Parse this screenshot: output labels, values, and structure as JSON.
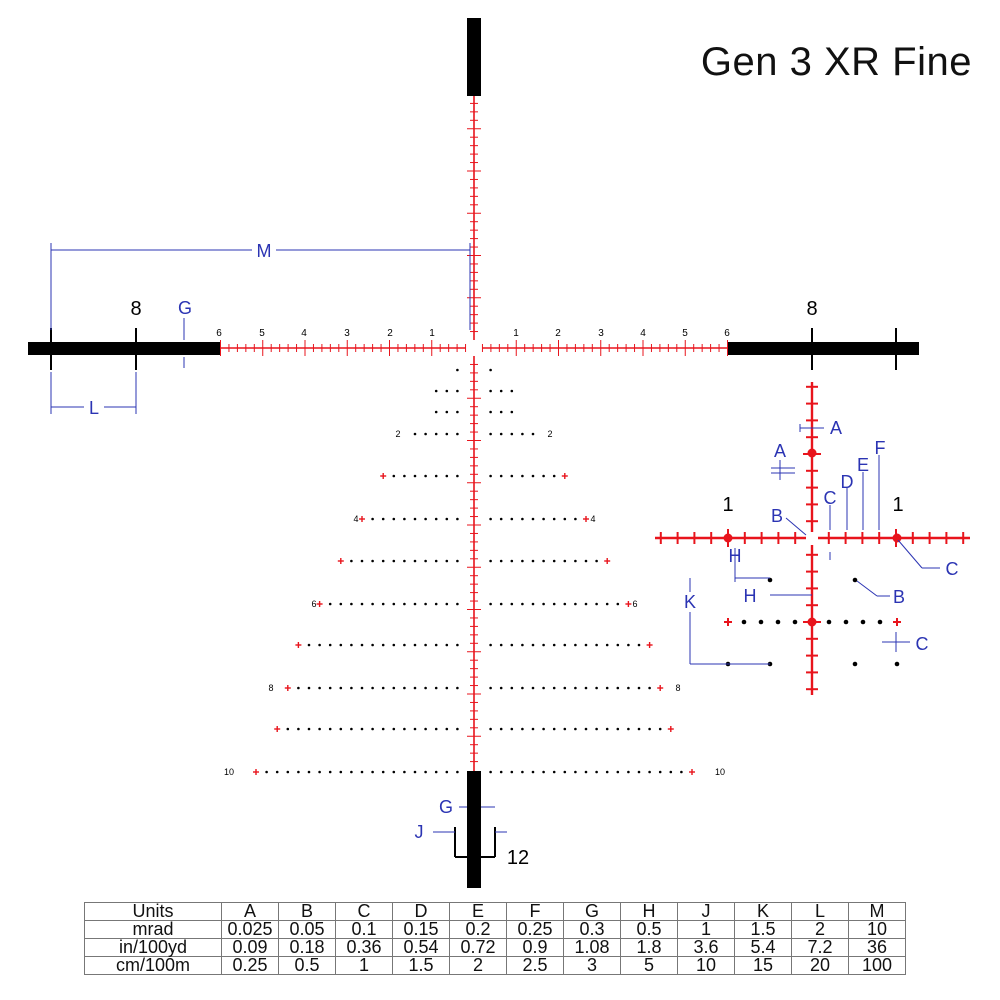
{
  "title": "Gen 3 XR Fine",
  "colors": {
    "reticle_red": "#e8141c",
    "dimension_blue": "#2b34b3",
    "black": "#000000"
  },
  "horizontal_numbers": {
    "left": [
      "6",
      "5",
      "4",
      "3",
      "2",
      "1"
    ],
    "right": [
      "1",
      "2",
      "3",
      "4",
      "5",
      "6"
    ]
  },
  "post_numbers": {
    "left": "8",
    "right": "8",
    "bottom": "12"
  },
  "tree_numbers": [
    "2",
    "4",
    "6",
    "8",
    "10"
  ],
  "detail_numbers": {
    "left": "1",
    "right": "1"
  },
  "dimension_labels": {
    "M": "M",
    "G_top": "G",
    "L": "L",
    "G_bottom": "G",
    "J": "J",
    "A_top": "A",
    "A_left": "A",
    "B_left": "B",
    "B_right": "B",
    "C_top": "C",
    "C_right": "C",
    "C_bottom": "C",
    "D": "D",
    "E": "E",
    "F": "F",
    "H_top": "H",
    "H_mid": "H",
    "K": "K"
  },
  "table": {
    "header": [
      "Units",
      "A",
      "B",
      "C",
      "D",
      "E",
      "F",
      "G",
      "H",
      "J",
      "K",
      "L",
      "M"
    ],
    "rows": [
      [
        "mrad",
        "0.025",
        "0.05",
        "0.1",
        "0.15",
        "0.2",
        "0.25",
        "0.3",
        "0.5",
        "1",
        "1.5",
        "2",
        "10"
      ],
      [
        "in/100yd",
        "0.09",
        "0.18",
        "0.36",
        "0.54",
        "0.72",
        "0.9",
        "1.08",
        "1.8",
        "3.6",
        "5.4",
        "7.2",
        "36"
      ],
      [
        "cm/100m",
        "0.25",
        "0.5",
        "1",
        "1.5",
        "2",
        "2.5",
        "3",
        "5",
        "10",
        "15",
        "20",
        "100"
      ]
    ]
  }
}
